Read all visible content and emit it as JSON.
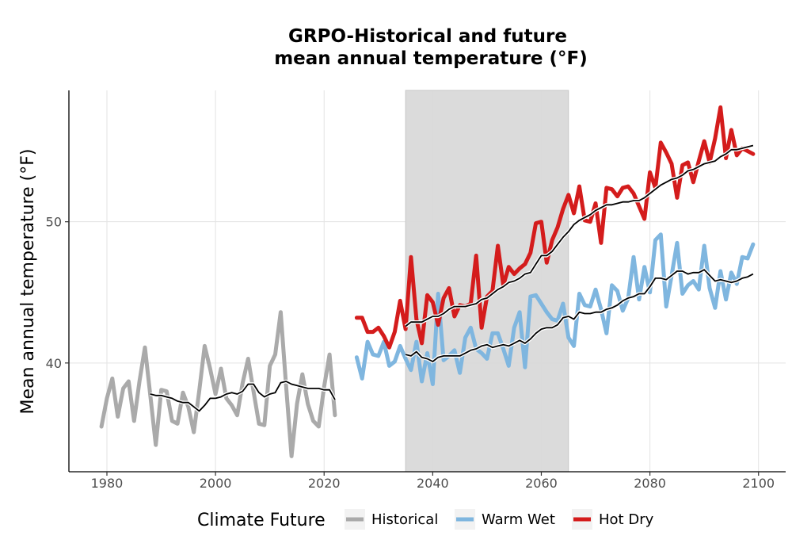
{
  "chart_data": {
    "type": "line",
    "title_line1": "GRPO-Historical and future",
    "title_line2": "mean annual temperature (°F)",
    "xlabel": "",
    "ylabel": "Mean annual temperature (°F)",
    "xlim": [
      1973,
      2105
    ],
    "ylim": [
      32.3,
      59.3
    ],
    "x_ticks": [
      "1980",
      "2000",
      "2020",
      "2040",
      "2060",
      "2080",
      "2100"
    ],
    "y_ticks": [
      "40",
      "50"
    ],
    "grid": true,
    "shaded_period": [
      2035,
      2065
    ],
    "legend": {
      "title": "Climate Future",
      "position": "bottom"
    },
    "series": [
      {
        "name": "Historical",
        "color": "#aaaaaa",
        "x": [
          1979,
          1980,
          1981,
          1982,
          1983,
          1984,
          1985,
          1986,
          1987,
          1988,
          1989,
          1990,
          1991,
          1992,
          1993,
          1994,
          1995,
          1996,
          1997,
          1998,
          1999,
          2000,
          2001,
          2002,
          2003,
          2004,
          2005,
          2006,
          2007,
          2008,
          2009,
          2010,
          2011,
          2012,
          2013,
          2014,
          2015,
          2016,
          2017,
          2018,
          2019,
          2020,
          2021,
          2022
        ],
        "values": [
          35.5,
          37.5,
          38.9,
          36.2,
          38.2,
          38.7,
          35.9,
          38.7,
          41.1,
          37.7,
          34.2,
          38.1,
          38.0,
          35.9,
          35.7,
          37.9,
          36.9,
          35.1,
          38.0,
          41.2,
          39.6,
          37.8,
          39.6,
          37.5,
          37.0,
          36.3,
          38.6,
          40.3,
          38.0,
          35.7,
          35.6,
          39.8,
          40.6,
          43.6,
          38.4,
          33.4,
          37.1,
          39.2,
          37.1,
          35.9,
          35.5,
          38.3,
          40.6,
          36.3
        ]
      },
      {
        "name": "Warm Wet",
        "color": "#7fb6df",
        "x": [
          2026,
          2027,
          2028,
          2029,
          2030,
          2031,
          2032,
          2033,
          2034,
          2035,
          2036,
          2037,
          2038,
          2039,
          2040,
          2041,
          2042,
          2043,
          2044,
          2045,
          2046,
          2047,
          2048,
          2049,
          2050,
          2051,
          2052,
          2053,
          2054,
          2055,
          2056,
          2057,
          2058,
          2059,
          2060,
          2061,
          2062,
          2063,
          2064,
          2065,
          2066,
          2067,
          2068,
          2069,
          2070,
          2071,
          2072,
          2073,
          2074,
          2075,
          2076,
          2077,
          2078,
          2079,
          2080,
          2081,
          2082,
          2083,
          2084,
          2085,
          2086,
          2087,
          2088,
          2089,
          2090,
          2091,
          2092,
          2093,
          2094,
          2095,
          2096,
          2097,
          2098,
          2099
        ],
        "values": [
          40.4,
          38.9,
          41.5,
          40.6,
          40.5,
          41.5,
          39.8,
          40.1,
          41.2,
          40.3,
          39.5,
          41.5,
          38.7,
          40.7,
          38.5,
          44.9,
          40.2,
          40.5,
          40.9,
          39.3,
          41.8,
          42.5,
          41.0,
          40.7,
          40.3,
          42.1,
          42.1,
          41.0,
          39.8,
          42.5,
          43.6,
          39.7,
          44.7,
          44.8,
          44.2,
          43.6,
          43.1,
          43.0,
          44.2,
          41.8,
          41.2,
          44.9,
          44.1,
          44.0,
          45.2,
          43.8,
          42.1,
          45.5,
          45.1,
          43.7,
          44.6,
          47.5,
          44.5,
          46.8,
          45.0,
          48.7,
          49.1,
          44.0,
          46.2,
          48.5,
          44.9,
          45.5,
          45.8,
          45.2,
          48.3,
          45.3,
          43.9,
          46.5,
          44.5,
          46.4,
          45.6,
          47.5,
          47.4,
          48.4
        ]
      },
      {
        "name": "Hot Dry",
        "color": "#d41c1c",
        "x": [
          2026,
          2027,
          2028,
          2029,
          2030,
          2031,
          2032,
          2033,
          2034,
          2035,
          2036,
          2037,
          2038,
          2039,
          2040,
          2041,
          2042,
          2043,
          2044,
          2045,
          2046,
          2047,
          2048,
          2049,
          2050,
          2051,
          2052,
          2053,
          2054,
          2055,
          2056,
          2057,
          2058,
          2059,
          2060,
          2061,
          2062,
          2063,
          2064,
          2065,
          2066,
          2067,
          2068,
          2069,
          2070,
          2071,
          2072,
          2073,
          2074,
          2075,
          2076,
          2077,
          2078,
          2079,
          2080,
          2081,
          2082,
          2083,
          2084,
          2085,
          2086,
          2087,
          2088,
          2089,
          2090,
          2091,
          2092,
          2093,
          2094,
          2095,
          2096,
          2097,
          2098,
          2099
        ],
        "values": [
          43.2,
          43.2,
          42.2,
          42.2,
          42.5,
          41.9,
          41.1,
          42.2,
          44.4,
          42.4,
          47.5,
          43.1,
          41.4,
          44.8,
          44.3,
          42.7,
          44.6,
          45.3,
          43.3,
          44.1,
          44.0,
          44.2,
          47.6,
          42.5,
          44.7,
          45.1,
          48.3,
          45.5,
          46.8,
          46.3,
          46.7,
          47.0,
          47.8,
          49.9,
          50.0,
          47.1,
          48.7,
          49.6,
          50.9,
          51.9,
          50.6,
          52.5,
          50.1,
          50.0,
          51.3,
          48.5,
          52.4,
          52.3,
          51.8,
          52.4,
          52.5,
          52.0,
          51.1,
          50.2,
          53.5,
          52.4,
          55.6,
          54.9,
          54.1,
          51.7,
          54.0,
          54.2,
          52.8,
          54.3,
          55.7,
          54.2,
          55.9,
          58.1,
          54.5,
          56.5,
          54.7,
          55.2,
          55.0,
          54.8
        ]
      },
      {
        "name": "",
        "color": "#000000",
        "x": [
          1988,
          1989,
          1990,
          1991,
          1992,
          1993,
          1994,
          1995,
          1996,
          1997,
          1998,
          1999,
          2000,
          2001,
          2002,
          2003,
          2004,
          2005,
          2006,
          2007,
          2008,
          2009,
          2010,
          2011,
          2012,
          2013,
          2014,
          2015,
          2016,
          2017,
          2018,
          2019,
          2020,
          2021,
          2022
        ],
        "values": [
          37.8,
          37.7,
          37.7,
          37.6,
          37.5,
          37.3,
          37.2,
          37.2,
          36.9,
          36.6,
          37.0,
          37.5,
          37.5,
          37.6,
          37.8,
          37.9,
          37.8,
          38.0,
          38.5,
          38.5,
          37.9,
          37.6,
          37.8,
          37.9,
          38.6,
          38.7,
          38.5,
          38.4,
          38.3,
          38.2,
          38.2,
          38.2,
          38.1,
          38.1,
          37.4
        ]
      },
      {
        "name": "",
        "color": "#000000",
        "x": [
          2035,
          2036,
          2037,
          2038,
          2039,
          2040,
          2041,
          2042,
          2043,
          2044,
          2045,
          2046,
          2047,
          2048,
          2049,
          2050,
          2051,
          2052,
          2053,
          2054,
          2055,
          2056,
          2057,
          2058,
          2059,
          2060,
          2061,
          2062,
          2063,
          2064,
          2065,
          2066,
          2067,
          2068,
          2069,
          2070,
          2071,
          2072,
          2073,
          2074,
          2075,
          2076,
          2077,
          2078,
          2079,
          2080,
          2081,
          2082,
          2083,
          2084,
          2085,
          2086,
          2087,
          2088,
          2089,
          2090,
          2091,
          2092,
          2093,
          2094,
          2095,
          2096,
          2097,
          2098,
          2099
        ],
        "values": [
          40.6,
          40.5,
          40.8,
          40.4,
          40.3,
          40.1,
          40.4,
          40.5,
          40.5,
          40.5,
          40.5,
          40.7,
          40.9,
          41.0,
          41.2,
          41.3,
          41.1,
          41.2,
          41.3,
          41.2,
          41.4,
          41.6,
          41.4,
          41.7,
          42.1,
          42.4,
          42.5,
          42.5,
          42.7,
          43.2,
          43.3,
          43.1,
          43.6,
          43.5,
          43.5,
          43.6,
          43.6,
          43.8,
          43.9,
          44.1,
          44.4,
          44.6,
          44.7,
          44.9,
          44.9,
          45.4,
          46.0,
          46.0,
          45.9,
          46.2,
          46.5,
          46.5,
          46.3,
          46.4,
          46.4,
          46.6,
          46.2,
          45.8,
          45.9,
          45.8,
          45.7,
          45.8,
          46.0,
          46.1,
          46.3
        ]
      },
      {
        "name": "",
        "color": "#000000",
        "x": [
          2035,
          2036,
          2037,
          2038,
          2039,
          2040,
          2041,
          2042,
          2043,
          2044,
          2045,
          2046,
          2047,
          2048,
          2049,
          2050,
          2051,
          2052,
          2053,
          2054,
          2055,
          2056,
          2057,
          2058,
          2059,
          2060,
          2061,
          2062,
          2063,
          2064,
          2065,
          2066,
          2067,
          2068,
          2069,
          2070,
          2071,
          2072,
          2073,
          2074,
          2075,
          2076,
          2077,
          2078,
          2079,
          2080,
          2081,
          2082,
          2083,
          2084,
          2085,
          2086,
          2087,
          2088,
          2089,
          2090,
          2091,
          2092,
          2093,
          2094,
          2095,
          2096,
          2097,
          2098,
          2099
        ],
        "values": [
          42.6,
          42.9,
          42.9,
          42.9,
          43.1,
          43.3,
          43.3,
          43.5,
          43.8,
          44.0,
          44.0,
          44.0,
          44.1,
          44.2,
          44.5,
          44.6,
          44.9,
          45.2,
          45.4,
          45.7,
          45.8,
          46.0,
          46.3,
          46.4,
          47.0,
          47.6,
          47.6,
          47.9,
          48.4,
          48.9,
          49.3,
          49.8,
          50.1,
          50.3,
          50.5,
          50.8,
          51.0,
          51.2,
          51.2,
          51.3,
          51.4,
          51.4,
          51.5,
          51.5,
          51.7,
          52.0,
          52.3,
          52.6,
          52.8,
          53.0,
          53.1,
          53.3,
          53.6,
          53.7,
          53.9,
          54.1,
          54.2,
          54.3,
          54.6,
          54.8,
          55.1,
          55.1,
          55.2,
          55.3,
          55.4
        ]
      }
    ]
  }
}
